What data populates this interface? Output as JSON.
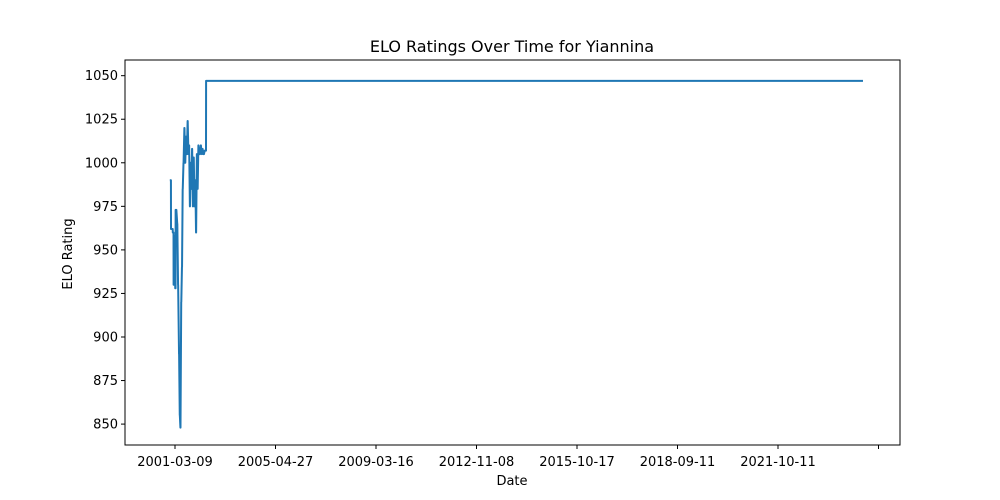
{
  "chart_data": {
    "type": "line",
    "title": "ELO Ratings Over Time for Yiannina",
    "xlabel": "Date",
    "ylabel": "ELO Rating",
    "grid": false,
    "legend": "none",
    "x_ticks": [
      "2001-03-09",
      "2005-04-27",
      "2009-03-16",
      "2012-11-08",
      "2015-10-17",
      "2018-09-11",
      "2021-10-11",
      ""
    ],
    "y_ticks": [
      850,
      875,
      900,
      925,
      950,
      975,
      1000,
      1025,
      1050
    ],
    "ylim": [
      838,
      1059
    ],
    "xlim": [
      "1999-04-06",
      "2025-06-15"
    ],
    "series": [
      {
        "name": "",
        "color": "#1f77b4",
        "x": [
          "2000-10-10",
          "2000-10-24",
          "2000-10-25",
          "2000-11-15",
          "2000-11-16",
          "2000-11-25",
          "2000-11-26",
          "2000-12-03",
          "2000-12-04",
          "2000-12-15",
          "2000-12-16",
          "2000-12-20",
          "2000-12-21",
          "2000-12-30",
          "2001-01-10",
          "2001-01-11",
          "2001-01-20",
          "2001-01-21",
          "2001-02-01",
          "2001-02-02",
          "2001-02-10",
          "2001-02-11",
          "2001-02-18",
          "2001-02-19",
          "2001-02-28",
          "2001-03-01",
          "2001-03-09",
          "2001-03-10",
          "2001-03-18",
          "2001-03-19",
          "2001-03-28",
          "2001-03-29",
          "2001-04-08",
          "2001-04-09",
          "2001-04-18",
          "2001-04-19",
          "2001-04-28",
          "2001-04-29",
          "2001-05-08",
          "2001-05-09",
          "2001-05-18",
          "2001-05-19",
          "2001-05-28",
          "2001-05-29",
          "2001-06-05",
          "2001-06-06",
          "2001-06-15",
          "2001-06-16",
          "2001-06-25",
          "2001-06-26",
          "2001-07-02",
          "2001-07-03",
          "2001-07-12",
          "2001-07-13",
          "2001-07-22",
          "2001-07-23",
          "2001-08-01",
          "2001-08-02",
          "2001-08-11",
          "2001-08-12",
          "2001-08-20",
          "2001-08-21",
          "2001-08-30",
          "2001-08-31",
          "2001-09-09",
          "2001-09-10",
          "2001-09-18",
          "2001-09-19",
          "2001-09-28",
          "2001-09-29",
          "2001-10-08",
          "2001-10-09",
          "2001-10-18",
          "2001-10-19",
          "2001-10-28",
          "2001-10-29",
          "2001-11-08",
          "2001-11-09",
          "2001-11-18",
          "2001-11-19",
          "2001-11-28",
          "2001-11-29",
          "2001-12-05",
          "2001-12-06",
          "2001-12-15",
          "2001-12-16",
          "2001-12-24",
          "2001-12-25",
          "2001-12-31",
          "2002-01-01",
          "2002-01-10",
          "2024-03-15"
        ],
        "y": [
          990,
          990,
          962,
          962,
          960,
          960,
          930,
          930,
          958,
          958,
          928,
          928,
          973,
          973,
          965,
          965,
          930,
          930,
          890,
          890,
          855,
          855,
          848,
          848,
          920,
          920,
          940,
          940,
          985,
          985,
          1000,
          1000,
          1020,
          1020,
          1000,
          1000,
          1015,
          1015,
          1005,
          1005,
          1024,
          1024,
          1005,
          1005,
          1010,
          1010,
          975,
          975,
          1000,
          1000,
          985,
          985,
          1008,
          1008,
          975,
          975,
          1003,
          1003,
          975,
          975,
          990,
          990,
          960,
          960,
          1005,
          1005,
          985,
          985,
          1010,
          1010,
          1005,
          1005,
          1005,
          1005,
          1010,
          1010,
          1005,
          1005,
          1008,
          1008,
          1005,
          1005,
          1005,
          1005,
          1007,
          1007,
          1007,
          1007,
          1007,
          1047,
          1047,
          1047
        ]
      }
    ]
  }
}
